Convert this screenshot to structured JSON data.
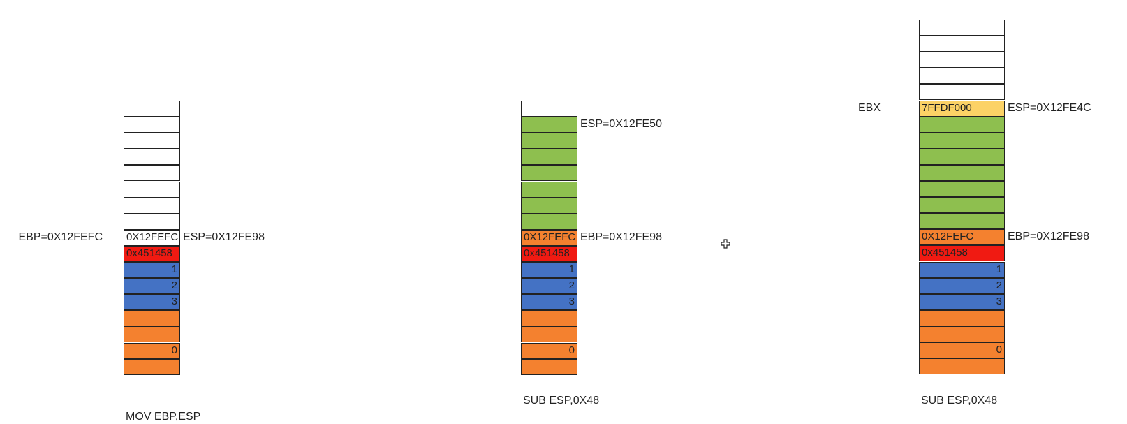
{
  "colors": {
    "white": "#ffffff",
    "green": "#8ebf4f",
    "orange": "#f4812f",
    "red": "#f01a12",
    "blue": "#4472c4",
    "yellow": "#fcd266"
  },
  "stacks": [
    {
      "id": "stack-1",
      "caption": "MOV EBP,ESP",
      "labels": [
        {
          "text": "EBP=0X12FEFC",
          "row": 8,
          "side": "left"
        },
        {
          "text": "ESP=0X12FE98",
          "row": 8,
          "side": "right"
        }
      ],
      "cells": [
        {
          "color": "white",
          "text": ""
        },
        {
          "color": "white",
          "text": ""
        },
        {
          "color": "white",
          "text": ""
        },
        {
          "color": "white",
          "text": ""
        },
        {
          "color": "white",
          "text": ""
        },
        {
          "color": "white",
          "text": ""
        },
        {
          "color": "white",
          "text": ""
        },
        {
          "color": "white",
          "text": ""
        },
        {
          "color": "white",
          "text": "0X12FEFC",
          "align": "left"
        },
        {
          "color": "red",
          "text": "0x451458",
          "align": "left"
        },
        {
          "color": "blue",
          "text": "1",
          "align": "right"
        },
        {
          "color": "blue",
          "text": "2",
          "align": "right"
        },
        {
          "color": "blue",
          "text": "3",
          "align": "right"
        },
        {
          "color": "orange",
          "text": ""
        },
        {
          "color": "orange",
          "text": ""
        },
        {
          "color": "orange",
          "text": "0",
          "align": "right"
        },
        {
          "color": "orange",
          "text": ""
        }
      ]
    },
    {
      "id": "stack-2",
      "caption": "SUB ESP,0X48",
      "labels": [
        {
          "text": "ESP=0X12FE50",
          "row": 1,
          "side": "right"
        },
        {
          "text": "EBP=0X12FE98",
          "row": 8,
          "side": "right"
        }
      ],
      "cells": [
        {
          "color": "white",
          "text": ""
        },
        {
          "color": "green",
          "text": ""
        },
        {
          "color": "green",
          "text": ""
        },
        {
          "color": "green",
          "text": ""
        },
        {
          "color": "green",
          "text": ""
        },
        {
          "color": "green",
          "text": ""
        },
        {
          "color": "green",
          "text": ""
        },
        {
          "color": "green",
          "text": ""
        },
        {
          "color": "orange",
          "text": "0X12FEFC",
          "align": "left"
        },
        {
          "color": "red",
          "text": "0x451458",
          "align": "left"
        },
        {
          "color": "blue",
          "text": "1",
          "align": "right"
        },
        {
          "color": "blue",
          "text": "2",
          "align": "right"
        },
        {
          "color": "blue",
          "text": "3",
          "align": "right"
        },
        {
          "color": "orange",
          "text": ""
        },
        {
          "color": "orange",
          "text": ""
        },
        {
          "color": "orange",
          "text": "0",
          "align": "right"
        },
        {
          "color": "orange",
          "text": ""
        }
      ]
    },
    {
      "id": "stack-3",
      "caption": "SUB ESP,0X48",
      "labels": [
        {
          "text": "EBX",
          "row": 5,
          "side": "left"
        },
        {
          "text": "ESP=0X12FE4C",
          "row": 5,
          "side": "right"
        },
        {
          "text": "EBP=0X12FE98",
          "row": 13,
          "side": "right"
        }
      ],
      "cells": [
        {
          "color": "white",
          "text": ""
        },
        {
          "color": "white",
          "text": ""
        },
        {
          "color": "white",
          "text": ""
        },
        {
          "color": "white",
          "text": ""
        },
        {
          "color": "white",
          "text": ""
        },
        {
          "color": "yellow",
          "text": "7FFDF000",
          "align": "left"
        },
        {
          "color": "green",
          "text": ""
        },
        {
          "color": "green",
          "text": ""
        },
        {
          "color": "green",
          "text": ""
        },
        {
          "color": "green",
          "text": ""
        },
        {
          "color": "green",
          "text": ""
        },
        {
          "color": "green",
          "text": ""
        },
        {
          "color": "green",
          "text": ""
        },
        {
          "color": "orange",
          "text": "0X12FEFC",
          "align": "left"
        },
        {
          "color": "red",
          "text": "0x451458",
          "align": "left"
        },
        {
          "color": "blue",
          "text": "1",
          "align": "right"
        },
        {
          "color": "blue",
          "text": "2",
          "align": "right"
        },
        {
          "color": "blue",
          "text": "3",
          "align": "right"
        },
        {
          "color": "orange",
          "text": ""
        },
        {
          "color": "orange",
          "text": ""
        },
        {
          "color": "orange",
          "text": "0",
          "align": "right"
        },
        {
          "color": "orange",
          "text": ""
        }
      ]
    }
  ]
}
